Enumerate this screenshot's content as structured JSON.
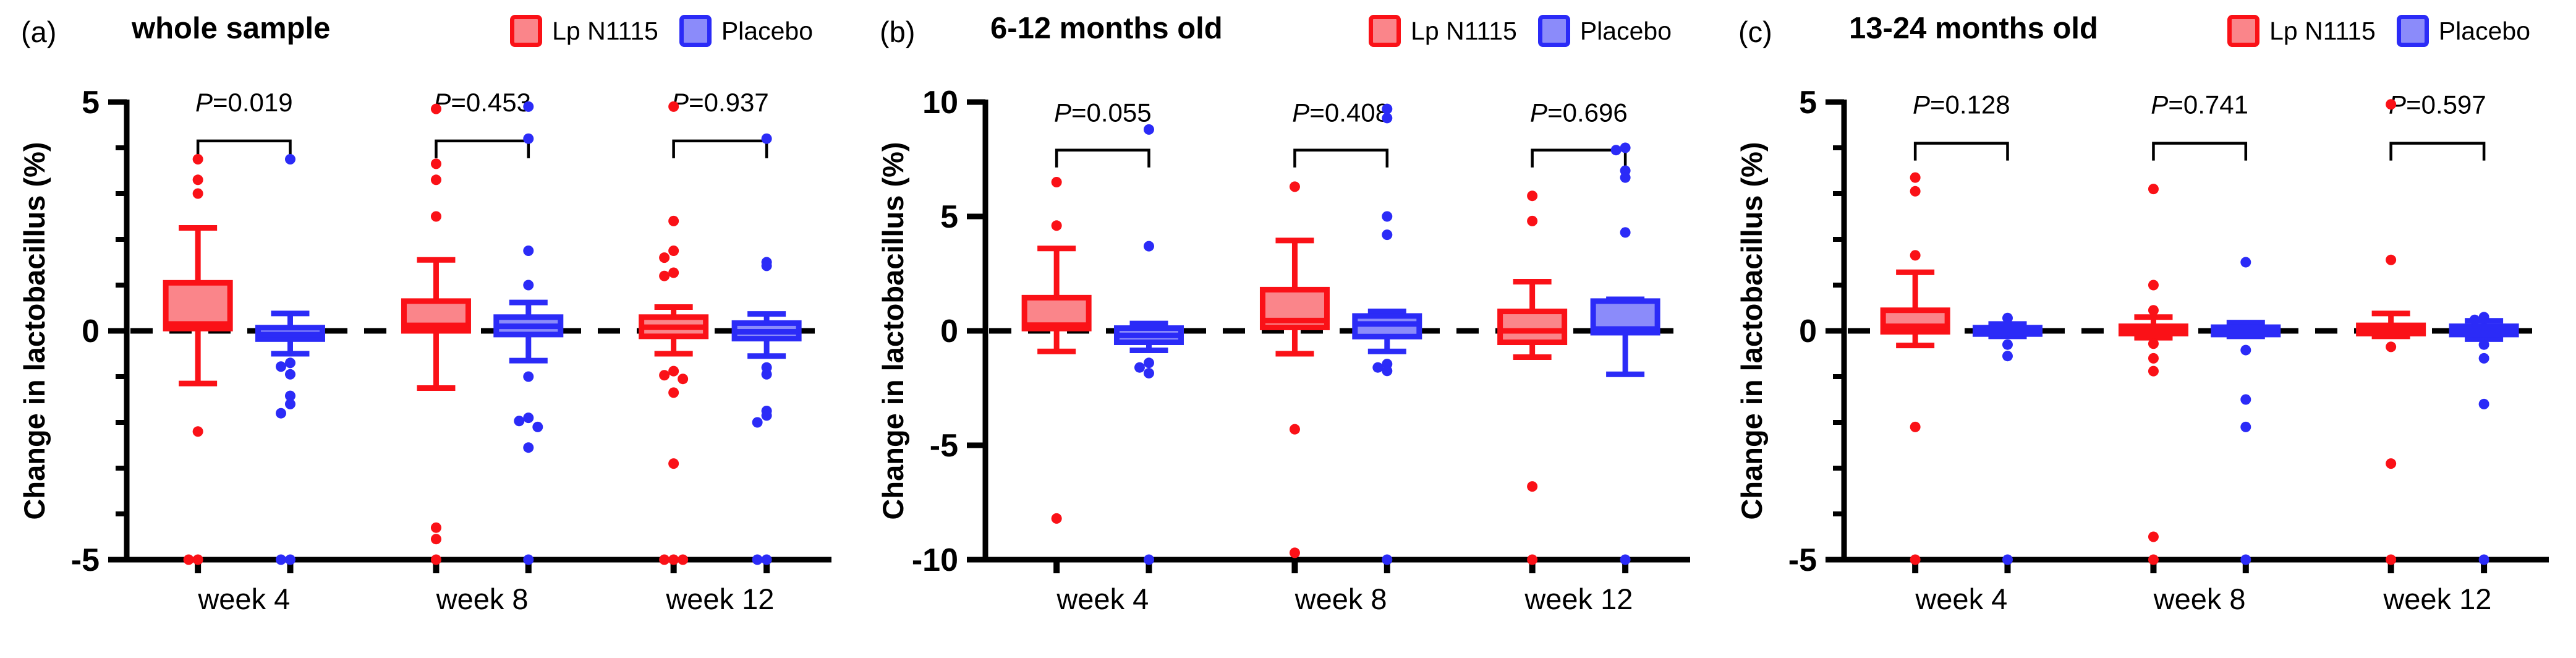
{
  "figure": {
    "ylabel": "Change in lactobacillus (%)",
    "x_categories": [
      "week 4",
      "week 8",
      "week 12"
    ],
    "legend": [
      {
        "label": "Lp N1115",
        "color": "#fa1117",
        "fill": "#fa858a"
      },
      {
        "label": "Placebo",
        "color": "#2b2bf7",
        "fill": "#8b8bfa"
      }
    ],
    "axis_color": "#000000",
    "zero_line_style": "dashed"
  },
  "chart_data": [
    {
      "type": "box",
      "panel_label": "(a)",
      "title": "whole sample",
      "ylabel": "Change in lactobacillus (%)",
      "ylim": [
        -5,
        5
      ],
      "yticks": [
        5,
        0,
        -5
      ],
      "minor_tick_step": 1,
      "categories": [
        "week 4",
        "week 8",
        "week 12"
      ],
      "p_values": [
        "0.019",
        "0.453",
        "0.937"
      ],
      "bracket_y": 4.15,
      "p_text_y": 4.8,
      "series": [
        {
          "name": "Lp N1115",
          "boxes": [
            {
              "whislo": -1.15,
              "q1": 0.05,
              "med": 0.15,
              "q3": 1.05,
              "whishi": 2.25,
              "outliers": [
                3.75,
                3.3,
                3.0,
                -2.2,
                -5,
                -5
              ]
            },
            {
              "whislo": -1.25,
              "q1": 0.0,
              "med": 0.12,
              "q3": 0.65,
              "whishi": 1.55,
              "outliers": [
                4.85,
                3.65,
                3.3,
                2.5,
                -4.3,
                -4.55,
                -5
              ]
            },
            {
              "whislo": -0.5,
              "q1": -0.12,
              "med": 0.08,
              "q3": 0.3,
              "whishi": 0.52,
              "outliers": [
                4.9,
                2.4,
                1.75,
                1.6,
                1.27,
                1.2,
                -0.88,
                -0.97,
                -1.05,
                -1.35,
                -2.9,
                -5,
                -5,
                -5
              ]
            }
          ]
        },
        {
          "name": "Placebo",
          "boxes": [
            {
              "whislo": -0.5,
              "q1": -0.18,
              "med": -0.08,
              "q3": 0.07,
              "whishi": 0.38,
              "outliers": [
                3.75,
                -0.7,
                -0.78,
                -0.95,
                -1.42,
                -1.6,
                -1.8,
                -5,
                -5
              ]
            },
            {
              "whislo": -0.65,
              "q1": -0.08,
              "med": 0.1,
              "q3": 0.3,
              "whishi": 0.62,
              "outliers": [
                4.9,
                4.2,
                1.75,
                1.0,
                -1.0,
                -1.9,
                -1.97,
                -2.1,
                -2.55,
                -5
              ]
            },
            {
              "whislo": -0.55,
              "q1": -0.17,
              "med": -0.02,
              "q3": 0.17,
              "whishi": 0.37,
              "outliers": [
                4.2,
                1.5,
                1.42,
                -0.8,
                -0.95,
                -1.75,
                -1.85,
                -2.0,
                -5,
                -5
              ]
            }
          ]
        }
      ]
    },
    {
      "type": "box",
      "panel_label": "(b)",
      "title": "6-12 months old",
      "ylabel": "Change in lactobacillus (%)",
      "ylim": [
        -10,
        10
      ],
      "yticks": [
        10,
        5,
        0,
        -5,
        -10
      ],
      "minor_tick_step": 0,
      "categories": [
        "week 4",
        "week 8",
        "week 12"
      ],
      "p_values": [
        "0.055",
        "0.408",
        "0.696"
      ],
      "bracket_y": 7.9,
      "p_text_y": 9.15,
      "series": [
        {
          "name": "Lp N1115",
          "boxes": [
            {
              "whislo": -0.9,
              "q1": 0.1,
              "med": 0.25,
              "q3": 1.45,
              "whishi": 3.6,
              "outliers": [
                6.5,
                4.6,
                -8.2
              ]
            },
            {
              "whislo": -1.0,
              "q1": 0.15,
              "med": 0.45,
              "q3": 1.8,
              "whishi": 3.95,
              "outliers": [
                6.3,
                -4.3,
                -9.7
              ]
            },
            {
              "whislo": -1.15,
              "q1": -0.5,
              "med": 0.0,
              "q3": 0.85,
              "whishi": 2.15,
              "outliers": [
                5.9,
                4.8,
                -6.8,
                -10
              ]
            }
          ]
        },
        {
          "name": "Placebo",
          "boxes": [
            {
              "whislo": -0.85,
              "q1": -0.5,
              "med": -0.2,
              "q3": 0.12,
              "whishi": 0.32,
              "outliers": [
                8.8,
                3.7,
                -1.4,
                -1.6,
                -1.85,
                -10
              ]
            },
            {
              "whislo": -0.9,
              "q1": -0.25,
              "med": 0.3,
              "q3": 0.65,
              "whishi": 0.85,
              "outliers": [
                9.7,
                9.3,
                5.0,
                4.2,
                -1.45,
                -1.6,
                -1.75,
                -10
              ]
            },
            {
              "whislo": -1.9,
              "q1": -0.08,
              "med": 0.08,
              "q3": 1.3,
              "whishi": 1.38,
              "outliers": [
                8.0,
                7.9,
                7.0,
                6.7,
                4.3,
                -10
              ]
            }
          ]
        }
      ]
    },
    {
      "type": "box",
      "panel_label": "(c)",
      "title": "13-24 months old",
      "ylabel": "Change in lactobacillus (%)",
      "ylim": [
        -5,
        5
      ],
      "yticks": [
        5,
        0,
        -5
      ],
      "minor_tick_step": 1,
      "categories": [
        "week 4",
        "week 8",
        "week 12"
      ],
      "p_values": [
        "0.128",
        "0.741",
        "0.597"
      ],
      "bracket_y": 4.1,
      "p_text_y": 4.75,
      "series": [
        {
          "name": "Lp N1115",
          "boxes": [
            {
              "whislo": -0.32,
              "q1": -0.02,
              "med": 0.1,
              "q3": 0.45,
              "whishi": 1.28,
              "outliers": [
                3.35,
                3.05,
                1.65,
                -2.1,
                -5
              ]
            },
            {
              "whislo": -0.15,
              "q1": -0.06,
              "med": 0.02,
              "q3": 0.1,
              "whishi": 0.3,
              "outliers": [
                3.1,
                1.0,
                0.45,
                -0.28,
                -0.6,
                -0.88,
                -4.5,
                -5
              ]
            },
            {
              "whislo": -0.12,
              "q1": -0.06,
              "med": 0.02,
              "q3": 0.12,
              "whishi": 0.38,
              "outliers": [
                4.95,
                1.55,
                -0.35,
                -2.9,
                -5
              ]
            }
          ]
        },
        {
          "name": "Placebo",
          "boxes": [
            {
              "whislo": -0.12,
              "q1": -0.07,
              "med": 0.0,
              "q3": 0.07,
              "whishi": 0.15,
              "outliers": [
                0.28,
                -0.3,
                -0.55,
                -5
              ]
            },
            {
              "whislo": -0.12,
              "q1": -0.08,
              "med": 0.0,
              "q3": 0.08,
              "whishi": 0.18,
              "outliers": [
                1.5,
                -0.42,
                -1.5,
                -2.1,
                -5
              ]
            },
            {
              "whislo": -0.18,
              "q1": -0.08,
              "med": 0.0,
              "q3": 0.1,
              "whishi": 0.22,
              "outliers": [
                0.3,
                0.24,
                -0.3,
                -0.6,
                -1.6,
                -5
              ]
            }
          ]
        }
      ]
    }
  ]
}
